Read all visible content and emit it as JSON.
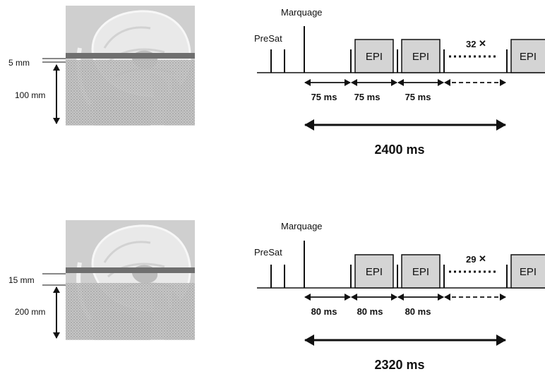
{
  "panels": [
    {
      "id": "top",
      "slab_thickness": "5 mm",
      "coverage": "100 mm",
      "marking_label": "Marquage",
      "presat_label": "PreSat",
      "epi_label": "EPI",
      "repeat_count": "32",
      "interval_labels": [
        "75 ms",
        "75 ms",
        "75 ms"
      ],
      "total_duration": "2400 ms"
    },
    {
      "id": "bottom",
      "slab_thickness": "15 mm",
      "coverage": "200 mm",
      "marking_label": "Marquage",
      "presat_label": "PreSat",
      "epi_label": "EPI",
      "repeat_count": "29",
      "interval_labels": [
        "80 ms",
        "80 ms",
        "80 ms"
      ],
      "total_duration": "2320 ms"
    }
  ],
  "colors": {
    "brain_bg": "#cfcfcf",
    "brain_tissue": "#e6e6e6",
    "stripe": "#6f6f6f",
    "hatch": "#bdbdbd",
    "epi_box": "#d4d4d4"
  }
}
